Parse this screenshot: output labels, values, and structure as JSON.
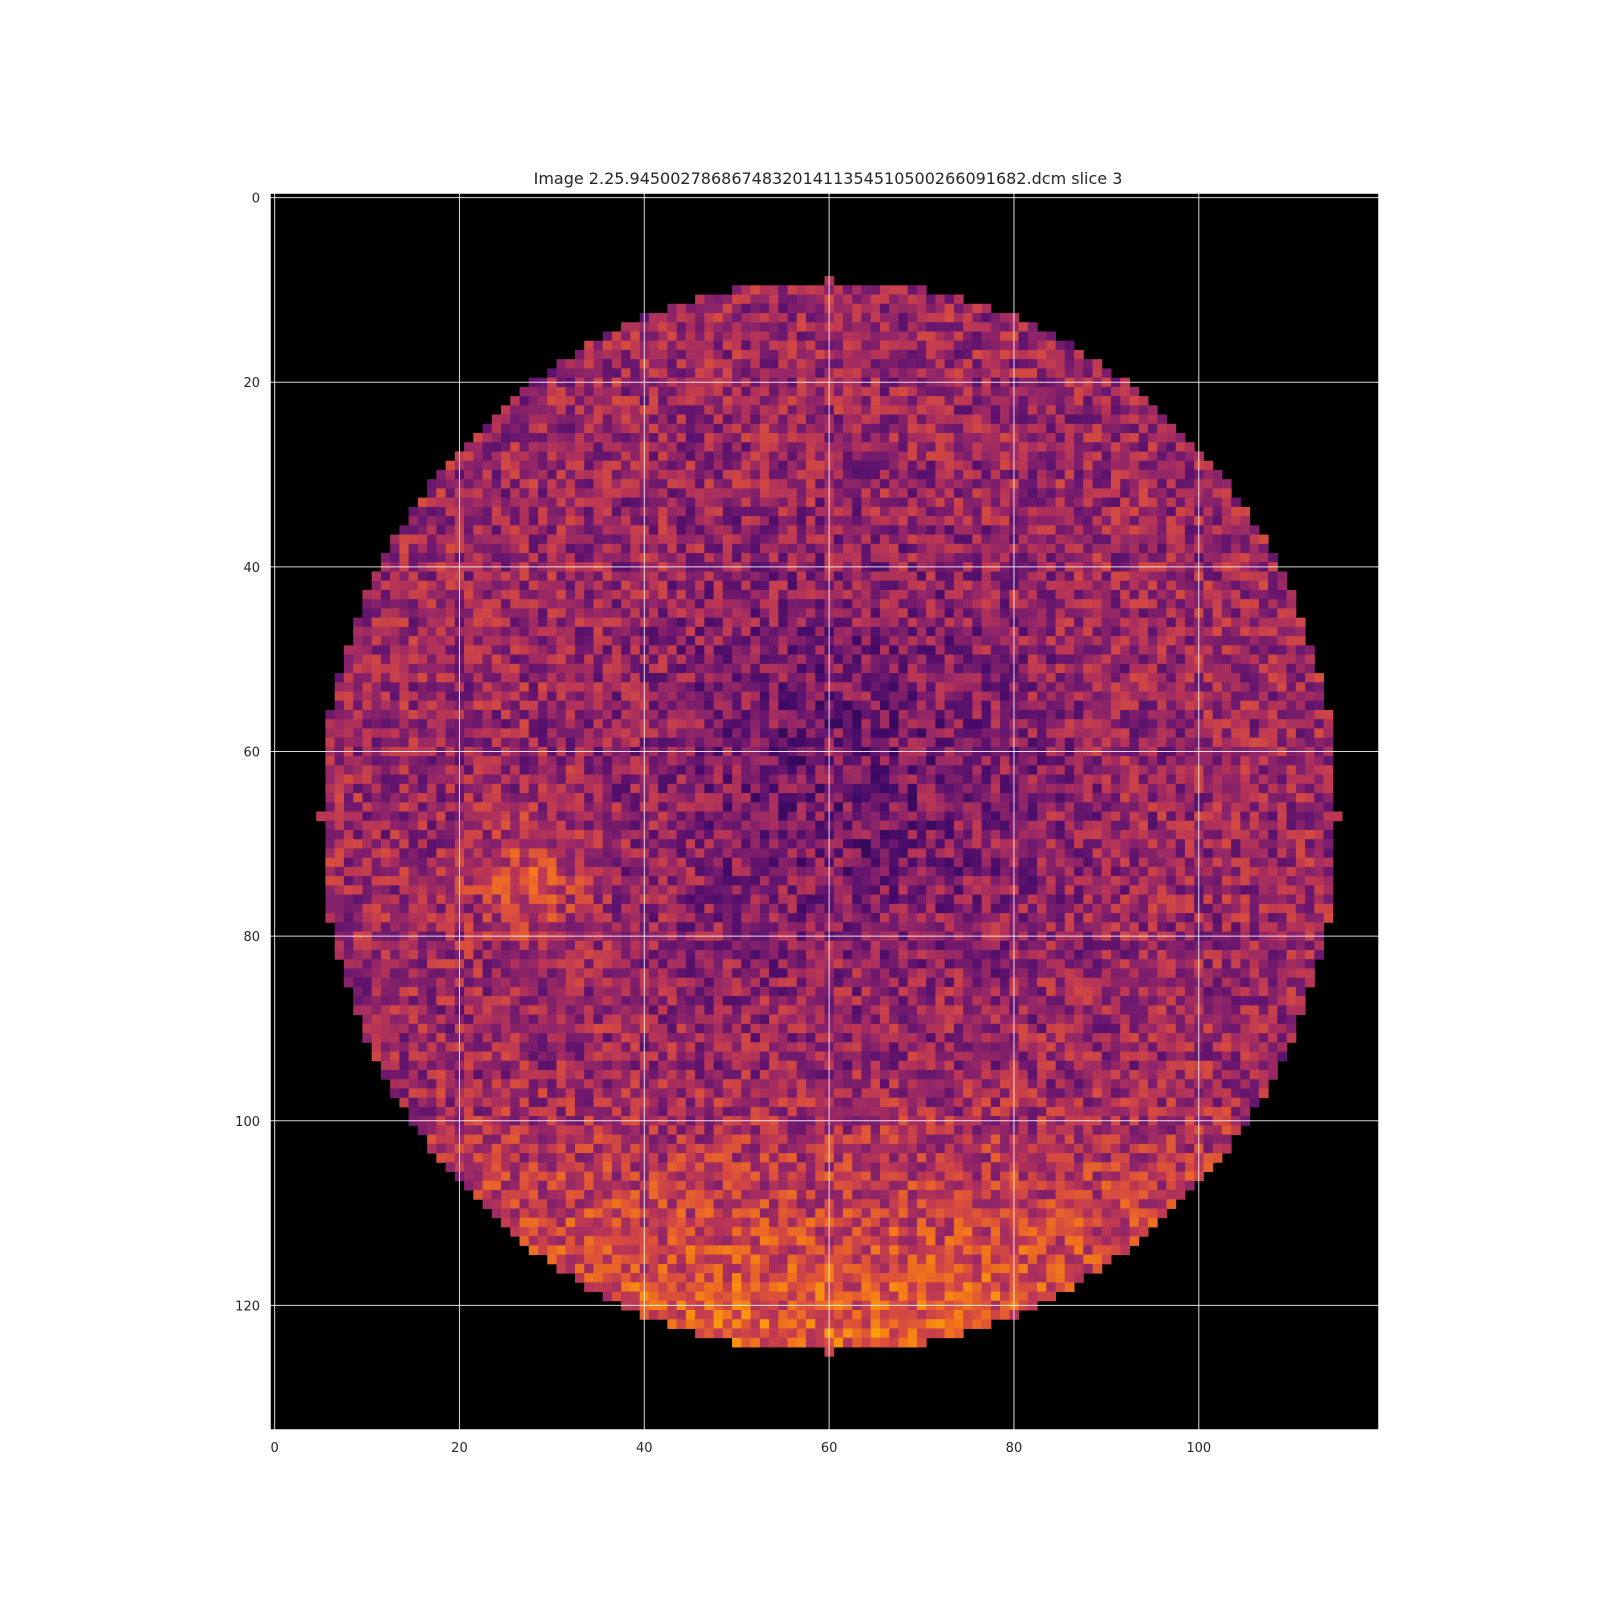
{
  "chart_data": {
    "type": "heatmap",
    "title": "Image 2.25.945002786867483201411354510500266091682.dcm slice 3",
    "xlabel": "",
    "ylabel": "",
    "colormap": "inferno",
    "background_color": "#000000",
    "grid": true,
    "grid_color": "#ffffff",
    "image_shape": {
      "rows": 134,
      "cols": 120
    },
    "xlim": [
      -0.5,
      119.5
    ],
    "ylim": [
      133.5,
      -0.5
    ],
    "x_ticks": [
      0,
      20,
      40,
      60,
      80,
      100
    ],
    "y_ticks": [
      0,
      20,
      40,
      60,
      80,
      100,
      120
    ],
    "x_tick_labels": [
      "0",
      "20",
      "40",
      "60",
      "80",
      "100"
    ],
    "y_tick_labels": [
      "0",
      "20",
      "40",
      "60",
      "80",
      "100",
      "120"
    ],
    "region": {
      "shape": "disk",
      "center_col": 60,
      "center_row": 67,
      "top_row": 9,
      "bottom_row": 125,
      "left_col": 5,
      "right_col": 115
    },
    "bright_regions": [
      {
        "description": "lower rim",
        "row_range": [
          105,
          124
        ],
        "col_range": [
          20,
          100
        ]
      },
      {
        "description": "left mid",
        "row_range": [
          68,
          80
        ],
        "col_range": [
          20,
          35
        ]
      }
    ]
  }
}
